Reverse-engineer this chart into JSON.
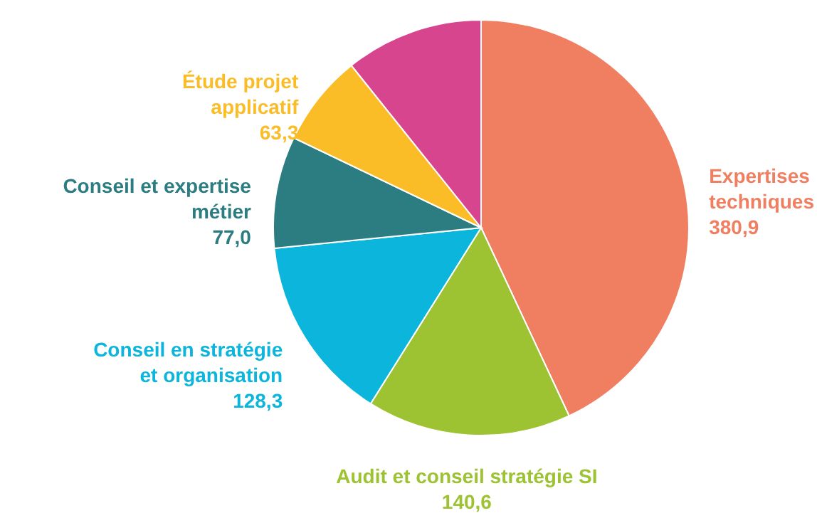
{
  "chart_data": {
    "type": "pie",
    "categories": [
      "Expertises techniques",
      "Audit et conseil stratégie SI",
      "Conseil en stratégie et organisation",
      "Conseil et expertise métier",
      "Étude projet applicatif",
      null
    ],
    "values": [
      380.9,
      140.6,
      128.3,
      77.0,
      63.3,
      95
    ],
    "value_labels": [
      "380,9",
      "140,6",
      "128,3",
      "77,0",
      "63,3",
      null
    ],
    "colors": [
      "#f07f62",
      "#9dc232",
      "#0cb5dc",
      "#2b7d81",
      "#fbbd27",
      "#d8458f"
    ]
  }
}
